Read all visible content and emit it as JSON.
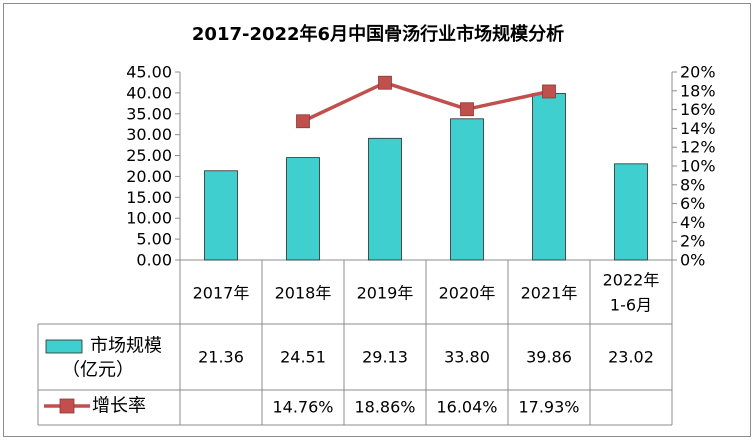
{
  "chart_data": {
    "type": "bar",
    "title": "2017-2022年6月中国骨汤行业市场规模分析",
    "categories": [
      "2017年",
      "2018年",
      "2019年",
      "2020年",
      "2021年",
      "2022年\n1-6月"
    ],
    "left_axis": {
      "ylim": [
        0,
        45
      ],
      "ticks": [
        "0.00",
        "5.00",
        "10.00",
        "15.00",
        "20.00",
        "25.00",
        "30.00",
        "35.00",
        "40.00",
        "45.00"
      ]
    },
    "right_axis": {
      "ylim": [
        0,
        20
      ],
      "ticks": [
        "0%",
        "2%",
        "4%",
        "6%",
        "8%",
        "10%",
        "12%",
        "14%",
        "16%",
        "18%",
        "20%"
      ]
    },
    "series": [
      {
        "name": "市场规模（亿元）",
        "type": "bar",
        "axis": "left",
        "color": "#40CFCF",
        "values": [
          21.36,
          24.51,
          29.13,
          33.8,
          39.86,
          23.02
        ],
        "labels": [
          "21.36",
          "24.51",
          "29.13",
          "33.80",
          "39.86",
          "23.02"
        ]
      },
      {
        "name": "增长率",
        "type": "line",
        "axis": "right",
        "color": "#C0504D",
        "values": [
          null,
          14.76,
          18.86,
          16.04,
          17.93,
          null
        ],
        "labels": [
          "",
          "14.76%",
          "18.86%",
          "16.04%",
          "17.93%",
          ""
        ]
      }
    ],
    "legend_placement": "data-table",
    "grid": false
  }
}
